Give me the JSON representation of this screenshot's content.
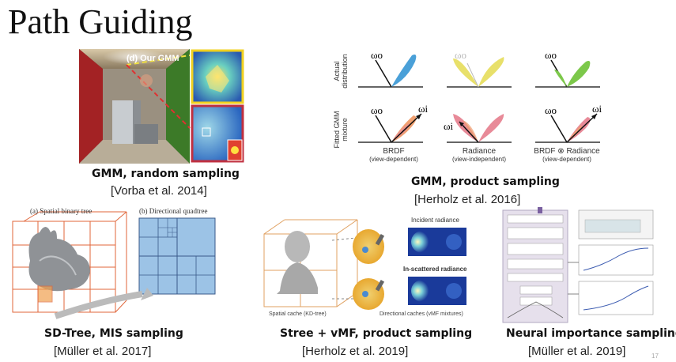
{
  "slide": {
    "title": "Path Guiding",
    "page_number": "17"
  },
  "gmm_random": {
    "inset_label": "(d) Our GMM",
    "caption": "GMM, random sampling",
    "reference": "[Vorba et al. 2014]"
  },
  "gmm_product": {
    "row_labels": [
      "Actual distribution",
      "Fitted GMM mixture"
    ],
    "symbols": {
      "omega_o": "ωo",
      "omega_i": "ωi"
    },
    "columns": [
      {
        "label": "BRDF",
        "sub": "(view-dependent)"
      },
      {
        "label": "Radiance",
        "sub": "(view-independent)"
      },
      {
        "label": "BRDF ⊗ Radiance",
        "sub": "(view-dependent)"
      }
    ],
    "caption": "GMM, product sampling",
    "reference": "[Herholz et al. 2016]"
  },
  "sd_tree": {
    "label_a": "(a) Spatial binary tree",
    "label_b": "(b) Directional quadtree",
    "caption": "SD-Tree, MIS sampling",
    "reference": "[Müller et al. 2017]"
  },
  "stree_vmf": {
    "label_incident": "Incident radiance",
    "label_inscattered": "In-scattered radiance",
    "label_spatial": "Spatial cache (KD-tree)",
    "label_directional": "Directional caches (vMF mixtures)",
    "caption": "Stree + vMF, product sampling",
    "reference": "[Herholz et al. 2019]"
  },
  "neural": {
    "caption": "Neural importance sampling",
    "reference": "[Müller et al. 2019]"
  },
  "colors": {
    "red_wall": "#b3262a",
    "green_wall": "#3f7a2a",
    "tree_orange": "#e0663a",
    "quadtree_blue": "#9cc3e6",
    "brdf_blue": "#4aa0d8",
    "radiance_yellow": "#e8e06a",
    "product_green": "#7cc84a",
    "fitted_orange": "#f0a070",
    "fitted_pink": "#e88a98"
  }
}
